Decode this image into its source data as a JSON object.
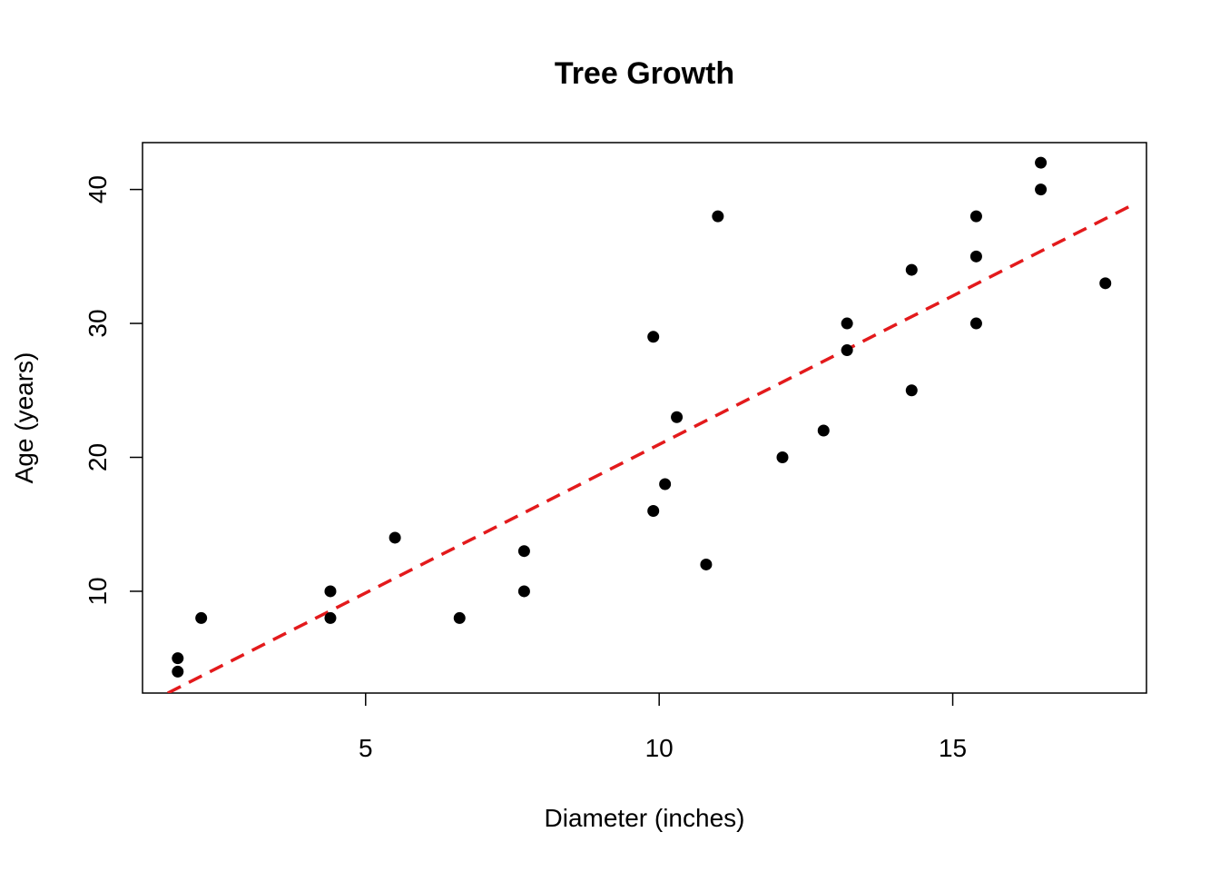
{
  "chart_data": {
    "type": "scatter",
    "title": "Tree Growth",
    "xlabel": "Diameter (inches)",
    "ylabel": "Age (years)",
    "xlim": [
      1.2,
      18.3
    ],
    "ylim": [
      2.4,
      43.5
    ],
    "xticks": [
      5,
      10,
      15
    ],
    "yticks": [
      10,
      20,
      30,
      40
    ],
    "grid": false,
    "point_color": "#000000",
    "points": [
      {
        "x": 1.8,
        "y": 4
      },
      {
        "x": 1.8,
        "y": 5
      },
      {
        "x": 2.2,
        "y": 8
      },
      {
        "x": 4.4,
        "y": 8
      },
      {
        "x": 4.4,
        "y": 10
      },
      {
        "x": 5.5,
        "y": 14
      },
      {
        "x": 6.6,
        "y": 8
      },
      {
        "x": 7.7,
        "y": 10
      },
      {
        "x": 7.7,
        "y": 13
      },
      {
        "x": 9.9,
        "y": 16
      },
      {
        "x": 9.9,
        "y": 29
      },
      {
        "x": 10.1,
        "y": 18
      },
      {
        "x": 10.3,
        "y": 23
      },
      {
        "x": 10.8,
        "y": 12
      },
      {
        "x": 11.0,
        "y": 38
      },
      {
        "x": 12.1,
        "y": 20
      },
      {
        "x": 12.8,
        "y": 22
      },
      {
        "x": 13.2,
        "y": 28
      },
      {
        "x": 13.2,
        "y": 30
      },
      {
        "x": 14.3,
        "y": 25
      },
      {
        "x": 14.3,
        "y": 34
      },
      {
        "x": 15.4,
        "y": 30
      },
      {
        "x": 15.4,
        "y": 35
      },
      {
        "x": 15.4,
        "y": 38
      },
      {
        "x": 16.5,
        "y": 40
      },
      {
        "x": 16.5,
        "y": 42
      },
      {
        "x": 17.6,
        "y": 33
      }
    ],
    "fit_line": {
      "style": "dashed",
      "color": "#e31a1c",
      "points": [
        {
          "x": 1.63,
          "y": 2.4
        },
        {
          "x": 18.13,
          "y": 39
        }
      ]
    }
  }
}
